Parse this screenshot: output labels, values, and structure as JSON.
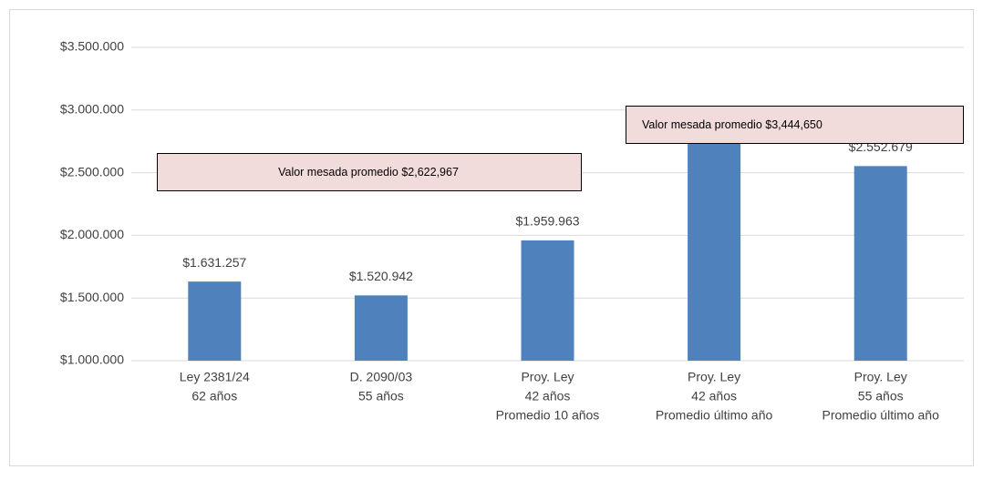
{
  "chart_data": {
    "type": "bar",
    "categories": [
      [
        "Ley 2381/24",
        "62 años"
      ],
      [
        "D. 2090/03",
        "55 años"
      ],
      [
        "Proy. Ley",
        "42 años",
        "Promedio 10 años"
      ],
      [
        "Proy. Ley",
        "42 años",
        "Promedio último año"
      ],
      [
        "Proy. Ley",
        "55 años",
        "Promedio último año"
      ]
    ],
    "values": [
      1631257,
      1520942,
      1959963,
      2810000,
      2552679
    ],
    "value_labels": [
      "$1.631.257",
      "$1.520.942",
      "$1.959.963",
      null,
      "$2.552.679"
    ],
    "color": "#4f81bd",
    "ylim": [
      1000000,
      3500000
    ],
    "yticks": [
      {
        "value": 1000000,
        "label": "$1.000.000"
      },
      {
        "value": 1500000,
        "label": "$1.500.000"
      },
      {
        "value": 2000000,
        "label": "$2.000.000"
      },
      {
        "value": 2500000,
        "label": "$2.500.000"
      },
      {
        "value": 3000000,
        "label": "$3.000.000"
      },
      {
        "value": 3500000,
        "label": "$3.500.000"
      }
    ],
    "grid": true,
    "annotations": [
      "Valor mesada promedio $2,622,967",
      "Valor mesada promedio $3,444,650"
    ]
  }
}
